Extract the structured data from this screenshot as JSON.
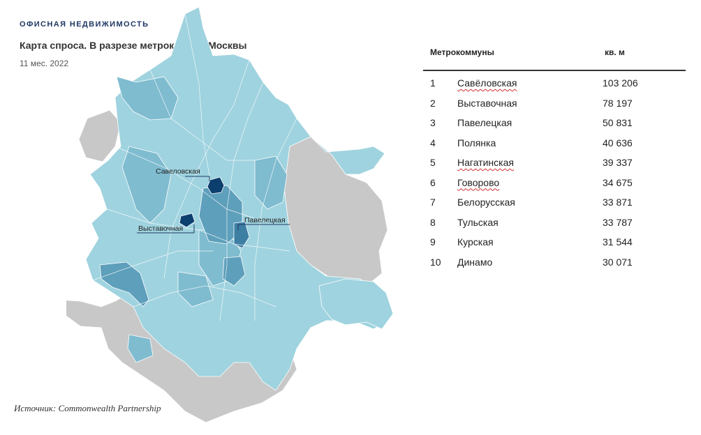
{
  "header": {
    "eyebrow": "ОФИСНАЯ НЕДВИЖИМОСТЬ",
    "title": "Карта спроса. В разрезе метрокоммун Москвы",
    "subtitle": "11 мес. 2022"
  },
  "map": {
    "labels": {
      "savelovskaya": "Савеловская",
      "vystavochnaya": "Выставочная",
      "paveletskaya": "Павелецкая"
    },
    "colors": {
      "outside": "#c8c8c8",
      "light": "#9fd3df",
      "medium": "#7fbcd0",
      "mid_dark": "#5e9fbb",
      "dark": "#3d7ea3",
      "darkest": "#0d3f6e"
    }
  },
  "table": {
    "col_name": "Метрокоммуны",
    "col_value": "кв. м",
    "rows": [
      {
        "rank": "1",
        "name": "Савёловская",
        "value": "103 206"
      },
      {
        "rank": "2",
        "name": "Выставочная",
        "value": "78 197"
      },
      {
        "rank": "3",
        "name": "Павелецкая",
        "value": "50 831"
      },
      {
        "rank": "4",
        "name": "Полянка",
        "value": "40 636"
      },
      {
        "rank": "5",
        "name": "Нагатинская",
        "value": "39 337"
      },
      {
        "rank": "6",
        "name": "Говорово",
        "value": "34 675"
      },
      {
        "rank": "7",
        "name": "Белорусская",
        "value": "33 871"
      },
      {
        "rank": "8",
        "name": "Тульская",
        "value": "33 787"
      },
      {
        "rank": "9",
        "name": "Курская",
        "value": "31 544"
      },
      {
        "rank": "10",
        "name": "Динамо",
        "value": "30 071"
      }
    ]
  },
  "source": "Источник: Commonwealth Partnership"
}
